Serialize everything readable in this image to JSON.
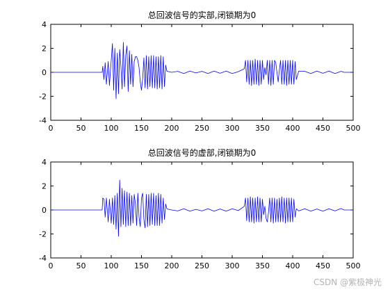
{
  "watermark": "CSDN @紫极神光",
  "chart_data": [
    {
      "type": "line",
      "title": "总回波信号的实部,闭锁期为0",
      "xlim": [
        0,
        500
      ],
      "ylim": [
        -4,
        4
      ],
      "xticks": [
        0,
        50,
        100,
        150,
        200,
        250,
        300,
        350,
        400,
        450,
        500
      ],
      "yticks": [
        -4,
        -2,
        0,
        2,
        4
      ],
      "xtick_labels": [
        "0",
        "50",
        "100",
        "150",
        "200",
        "250",
        "300",
        "350",
        "400",
        "450",
        "500"
      ],
      "ytick_labels": [
        "-4",
        "-2",
        "0",
        "2",
        "4"
      ],
      "grid": false,
      "line_color": "#0000ff",
      "series": [
        {
          "x": [
            0,
            85,
            86,
            88,
            90,
            92,
            95,
            97,
            100,
            102,
            104,
            106,
            108,
            110,
            112,
            114,
            116,
            118,
            120,
            122,
            124,
            126,
            128,
            130,
            132,
            134,
            136,
            138,
            140,
            142,
            144,
            146,
            148,
            150,
            152,
            154,
            156,
            158,
            160,
            162,
            164,
            166,
            168,
            170,
            172,
            174,
            176,
            178,
            180,
            182,
            184,
            186,
            188,
            190,
            192,
            195,
            200,
            210,
            220,
            230,
            240,
            250,
            260,
            270,
            280,
            290,
            300,
            310,
            320,
            322,
            324,
            326,
            328,
            330,
            332,
            334,
            336,
            338,
            340,
            342,
            344,
            346,
            348,
            350,
            352,
            354,
            356,
            358,
            360,
            362,
            364,
            366,
            368,
            370,
            372,
            374,
            376,
            378,
            380,
            382,
            384,
            386,
            388,
            390,
            392,
            394,
            396,
            398,
            400,
            402,
            404,
            406,
            410,
            420,
            430,
            440,
            450,
            460,
            470,
            480,
            485,
            500
          ],
          "y": [
            0,
            0,
            0.5,
            -0.6,
            0.8,
            -1.0,
            0.9,
            -1.1,
            1.0,
            2.4,
            -1.5,
            2.0,
            -2.2,
            1.6,
            -1.8,
            1.9,
            0.5,
            -1.4,
            2.5,
            -1.2,
            1.4,
            2.2,
            -1.6,
            1.8,
            -1.0,
            1.5,
            -1.2,
            0.9,
            1.3,
            1.3,
            1.0,
            0.4,
            -0.8,
            -1.5,
            -0.5,
            1.2,
            -1.3,
            1.4,
            -1.4,
            1.3,
            -1.2,
            1.4,
            -1.3,
            1.4,
            -1.3,
            1.3,
            -1.4,
            1.3,
            -1.3,
            1.4,
            -1.4,
            1.3,
            -1.2,
            0.6,
            0.1,
            0.05,
            0,
            0.08,
            -0.1,
            0.1,
            -0.05,
            0.08,
            -0.1,
            0.1,
            -0.08,
            0.1,
            -0.1,
            0.05,
            0.3,
            1.0,
            -0.8,
            1.0,
            -1.0,
            1.0,
            -1.1,
            1.0,
            -1.0,
            1.1,
            -1.0,
            1.0,
            -1.1,
            1.0,
            -1.0,
            1.0,
            -0.6,
            0.4,
            -0.2,
            1.0,
            -1.0,
            1.0,
            -1.1,
            1.0,
            -1.0,
            1.0,
            0.8,
            0,
            -0.8,
            0.2,
            1.0,
            -1.0,
            1.0,
            -1.0,
            1.0,
            -1.1,
            1.0,
            -1.0,
            1.0,
            -1.0,
            1.0,
            -1.0,
            0.9,
            -0.6,
            0.1,
            0.08,
            -0.1,
            0.1,
            -0.08,
            0.1,
            -0.1,
            0.08,
            0,
            0
          ]
        }
      ]
    },
    {
      "type": "line",
      "title": "总回波信号的虚部,闭锁期为0",
      "xlim": [
        0,
        500
      ],
      "ylim": [
        -4,
        4
      ],
      "xticks": [
        0,
        50,
        100,
        150,
        200,
        250,
        300,
        350,
        400,
        450,
        500
      ],
      "yticks": [
        -4,
        -2,
        0,
        2,
        4
      ],
      "xtick_labels": [
        "0",
        "50",
        "100",
        "150",
        "200",
        "250",
        "300",
        "350",
        "400",
        "450",
        "500"
      ],
      "ytick_labels": [
        "-4",
        "-2",
        "0",
        "2",
        "4"
      ],
      "grid": false,
      "line_color": "#0000ff",
      "series": [
        {
          "x": [
            0,
            85,
            86,
            88,
            90,
            92,
            95,
            97,
            100,
            102,
            104,
            106,
            108,
            110,
            112,
            114,
            116,
            118,
            120,
            122,
            124,
            126,
            128,
            130,
            132,
            134,
            136,
            138,
            140,
            142,
            144,
            146,
            148,
            150,
            152,
            154,
            156,
            158,
            160,
            162,
            164,
            166,
            168,
            170,
            172,
            174,
            176,
            178,
            180,
            182,
            184,
            186,
            188,
            190,
            192,
            195,
            200,
            210,
            220,
            230,
            240,
            250,
            260,
            270,
            280,
            290,
            300,
            310,
            320,
            322,
            324,
            326,
            328,
            330,
            332,
            334,
            336,
            338,
            340,
            342,
            344,
            346,
            348,
            350,
            352,
            354,
            356,
            358,
            360,
            362,
            364,
            366,
            368,
            370,
            372,
            374,
            376,
            378,
            380,
            382,
            384,
            386,
            388,
            390,
            392,
            394,
            396,
            398,
            400,
            402,
            404,
            406,
            410,
            420,
            430,
            440,
            450,
            460,
            470,
            480,
            485,
            500
          ],
          "y": [
            0,
            0,
            1.0,
            0.9,
            -0.6,
            1.0,
            -1.0,
            0.9,
            -1.1,
            1.0,
            -1.2,
            1.2,
            -1.6,
            1.4,
            -2.2,
            2.5,
            -1.4,
            1.8,
            -1.2,
            1.6,
            -1.4,
            1.5,
            -1.3,
            1.4,
            -1.3,
            1.2,
            -1.1,
            1.3,
            0.5,
            -1.3,
            1.4,
            -0.6,
            -1.4,
            1.0,
            1.4,
            -0.8,
            -1.5,
            1.3,
            -1.4,
            1.3,
            -1.3,
            1.4,
            -1.2,
            1.4,
            -1.3,
            1.2,
            -1.3,
            1.4,
            -1.3,
            1.3,
            -1.1,
            1.0,
            -0.8,
            0.5,
            0.1,
            0.05,
            0,
            -0.08,
            0.1,
            -0.1,
            0.05,
            -0.08,
            0.1,
            -0.1,
            0.08,
            -0.1,
            0.1,
            -0.05,
            0.3,
            1.0,
            -0.9,
            1.0,
            -1.0,
            1.1,
            -1.0,
            1.0,
            -1.1,
            1.0,
            -1.0,
            1.1,
            -1.0,
            1.0,
            -1.0,
            0.9,
            -0.4,
            0.3,
            -0.7,
            -1.0,
            -0.2,
            1.0,
            -1.0,
            1.0,
            -1.1,
            1.0,
            -1.0,
            0.9,
            -1.0,
            1.0,
            -1.0,
            1.1,
            -1.0,
            1.0,
            -1.1,
            1.0,
            -1.0,
            1.0,
            -1.0,
            1.0,
            -1.0,
            0.9,
            -0.6,
            0.1,
            -0.08,
            0.1,
            -0.1,
            0.08,
            -0.1,
            0.1,
            -0.08,
            0.12,
            0,
            0
          ]
        }
      ]
    }
  ]
}
